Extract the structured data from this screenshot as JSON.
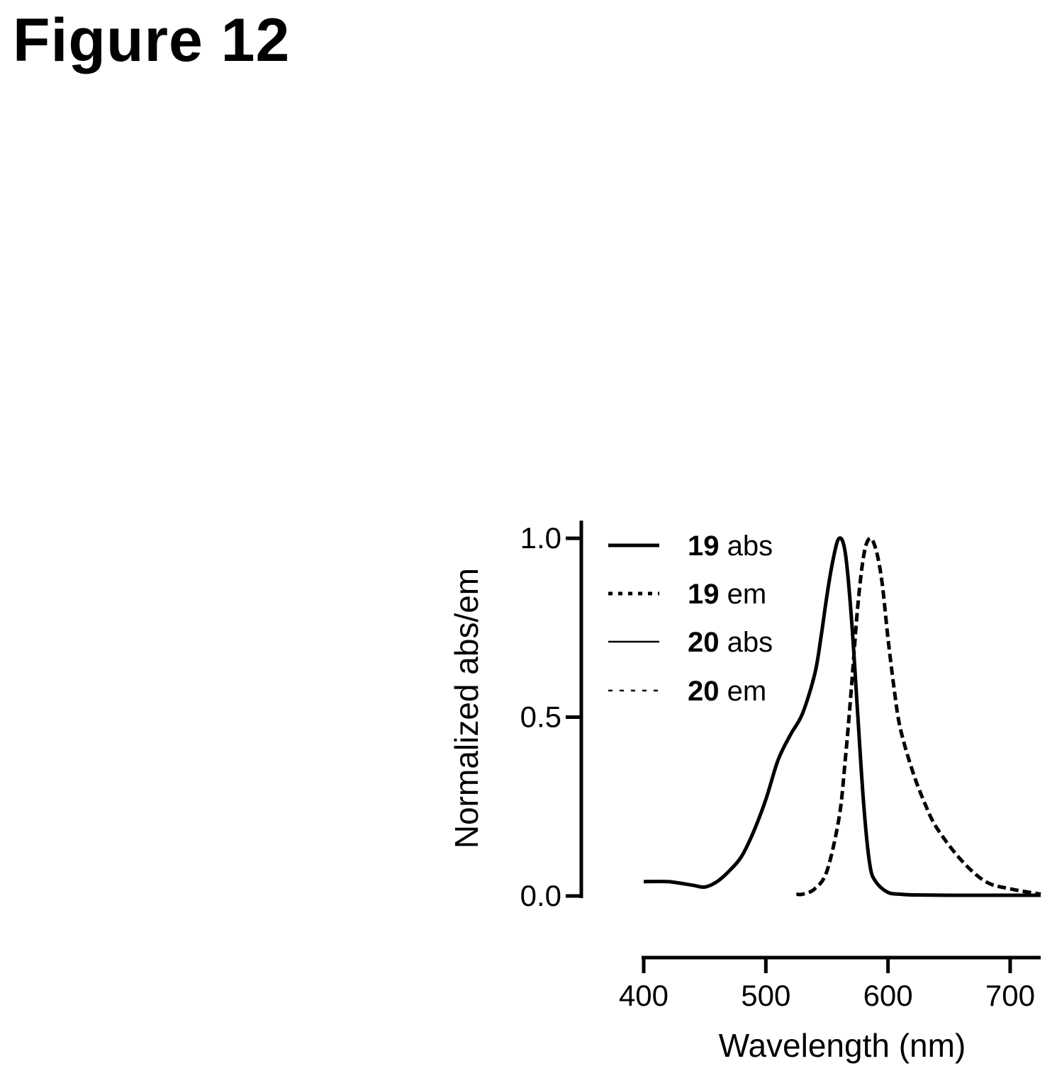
{
  "figure_title": "Figure 12",
  "chart_data": {
    "type": "line",
    "title": "",
    "xlabel": "Wavelength (nm)",
    "ylabel": "Normalized abs/em",
    "xlim": [
      400,
      725
    ],
    "ylim": [
      0,
      1.0
    ],
    "x_ticks": [
      "400",
      "500",
      "600",
      "700"
    ],
    "x_tick_values": [
      400,
      500,
      600,
      700
    ],
    "y_ticks": [
      "0.0",
      "0.5",
      "1.0"
    ],
    "y_tick_values": [
      0,
      0.5,
      1.0
    ],
    "grid": false,
    "legend_position": "top-left",
    "legend": [
      {
        "num": "19",
        "text": " abs",
        "style": "solid-thick"
      },
      {
        "num": "19",
        "text": " em",
        "style": "dotted"
      },
      {
        "num": "20",
        "text": " abs",
        "style": "solid-thin"
      },
      {
        "num": "20",
        "text": " em",
        "style": "dashed-thin"
      }
    ],
    "series": [
      {
        "name": "19 abs",
        "style": "solid-thick",
        "x": [
          400,
          420,
          440,
          450,
          460,
          470,
          480,
          490,
          500,
          510,
          520,
          530,
          540,
          545,
          550,
          555,
          560,
          565,
          570,
          575,
          580,
          585,
          590,
          600,
          610,
          620,
          650,
          700,
          725
        ],
        "y": [
          0.04,
          0.04,
          0.03,
          0.025,
          0.04,
          0.07,
          0.11,
          0.18,
          0.27,
          0.38,
          0.45,
          0.51,
          0.62,
          0.72,
          0.84,
          0.94,
          1.0,
          0.96,
          0.78,
          0.52,
          0.26,
          0.09,
          0.04,
          0.01,
          0.005,
          0.003,
          0.002,
          0.002,
          0.002
        ]
      },
      {
        "name": "19 em",
        "style": "dotted",
        "x": [
          525,
          530,
          540,
          550,
          560,
          565,
          570,
          575,
          580,
          585,
          590,
          595,
          600,
          605,
          610,
          620,
          630,
          640,
          660,
          680,
          700,
          725
        ],
        "y": [
          0.005,
          0.005,
          0.02,
          0.07,
          0.22,
          0.38,
          0.58,
          0.8,
          0.95,
          1.0,
          0.97,
          0.88,
          0.72,
          0.58,
          0.47,
          0.35,
          0.26,
          0.19,
          0.1,
          0.04,
          0.02,
          0.005
        ]
      },
      {
        "name": "20 abs",
        "style": "solid-thin",
        "x": [
          400,
          420,
          440,
          450,
          460,
          470,
          480,
          490,
          500,
          510,
          520,
          530,
          540,
          545,
          550,
          555,
          560,
          565,
          570,
          575,
          580,
          585,
          590,
          600,
          610,
          620,
          650,
          700,
          725
        ],
        "y": [
          0.04,
          0.04,
          0.03,
          0.025,
          0.04,
          0.07,
          0.11,
          0.18,
          0.27,
          0.38,
          0.45,
          0.51,
          0.62,
          0.72,
          0.84,
          0.94,
          1.0,
          0.96,
          0.78,
          0.52,
          0.26,
          0.09,
          0.04,
          0.01,
          0.005,
          0.003,
          0.002,
          0.002,
          0.002
        ]
      },
      {
        "name": "20 em",
        "style": "dashed-thin",
        "x": [
          525,
          530,
          540,
          550,
          560,
          565,
          570,
          575,
          580,
          585,
          590,
          595,
          600,
          605,
          610,
          620,
          630,
          640,
          660,
          680,
          700,
          725
        ],
        "y": [
          0.005,
          0.005,
          0.02,
          0.07,
          0.22,
          0.38,
          0.58,
          0.8,
          0.95,
          1.0,
          0.97,
          0.88,
          0.72,
          0.58,
          0.47,
          0.35,
          0.26,
          0.19,
          0.1,
          0.04,
          0.02,
          0.005
        ]
      }
    ]
  }
}
